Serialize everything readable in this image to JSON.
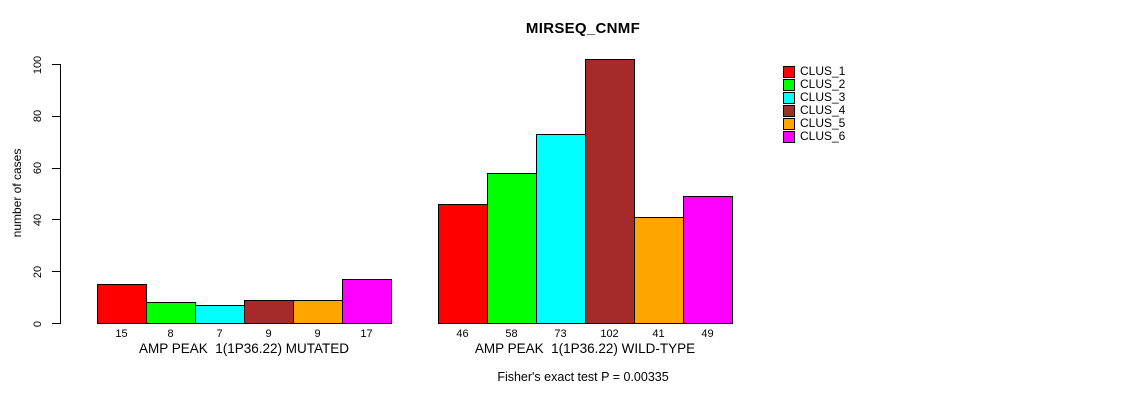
{
  "chart_data": {
    "type": "bar",
    "title": "MIRSEQ_CNMF",
    "ylabel": "number of cases",
    "ylim": [
      0,
      100
    ],
    "yticks": [
      0,
      20,
      40,
      60,
      80,
      100
    ],
    "grid": false,
    "legend_position": "top-right",
    "groups": [
      "AMP PEAK  1(1P36.22) MUTATED",
      "AMP PEAK  1(1P36.22) WILD-TYPE"
    ],
    "series": [
      {
        "name": "CLUS_1",
        "color": "#ff0000",
        "values": [
          15,
          46
        ]
      },
      {
        "name": "CLUS_2",
        "color": "#00ff00",
        "values": [
          8,
          58
        ]
      },
      {
        "name": "CLUS_3",
        "color": "#00ffff",
        "values": [
          7,
          73
        ]
      },
      {
        "name": "CLUS_4",
        "color": "#a52a2a",
        "values": [
          9,
          102
        ]
      },
      {
        "name": "CLUS_5",
        "color": "#ffa500",
        "values": [
          9,
          41
        ]
      },
      {
        "name": "CLUS_6",
        "color": "#ff00ff",
        "values": [
          17,
          49
        ]
      }
    ],
    "bar_value_labels": [
      [
        15,
        8,
        7,
        9,
        9,
        17
      ],
      [
        46,
        58,
        73,
        102,
        41,
        49
      ]
    ],
    "annotation": "Fisher's exact test P = 0.00335"
  }
}
